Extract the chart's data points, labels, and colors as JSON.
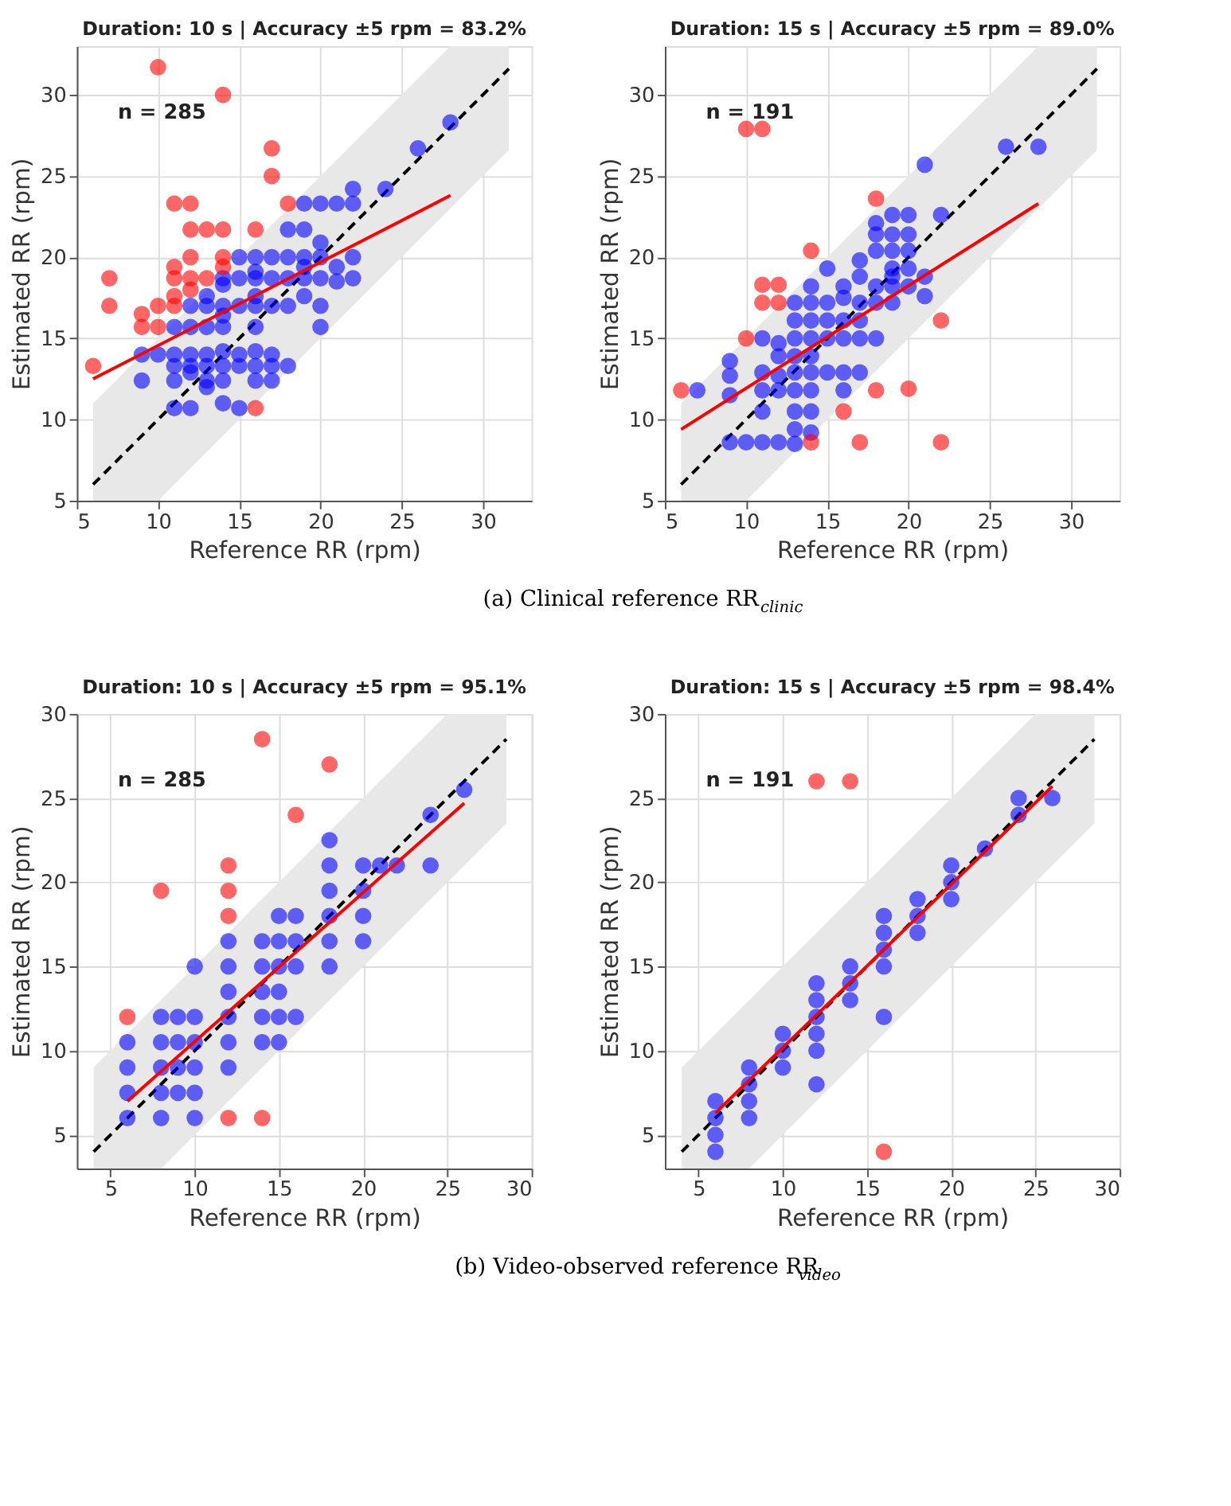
{
  "chart_data": [
    {
      "type": "scatter",
      "title": "Duration: 10 s | Accuracy ±5 rpm = 83.2%",
      "xlabel": "Reference RR (rpm)",
      "ylabel": "Estimated RR (rpm)",
      "xlim": [
        5,
        33
      ],
      "ylim": [
        5,
        33
      ],
      "xticks": [
        5,
        10,
        15,
        20,
        25,
        30
      ],
      "yticks": [
        5,
        10,
        15,
        20,
        25,
        30
      ],
      "grid": true,
      "annotations": [
        "n = 285",
        "(a) Clinical reference RR$_{clinic}$"
      ],
      "series": [
        {
          "type": "line",
          "color": "#000000",
          "line_style": "dashed",
          "x": [
            6,
            10,
            28,
            31.6
          ],
          "values": [
            6,
            10,
            28,
            31.6
          ],
          "lower": [
            5,
            5,
            23,
            26.6
          ],
          "upper": [
            11,
            15,
            33,
            33
          ]
        },
        {
          "type": "scatter",
          "color": "#0000ff",
          "x": [
            9,
            9,
            10,
            11,
            11,
            11,
            11,
            11,
            12,
            12,
            12,
            12,
            12,
            12,
            13,
            13,
            13,
            13,
            13,
            13,
            13,
            14,
            14,
            14,
            14,
            14,
            14,
            14,
            14,
            14,
            15,
            15,
            15,
            15,
            15,
            15,
            16,
            16,
            16,
            16,
            16,
            16,
            16,
            16,
            16,
            17,
            17,
            17,
            17,
            17,
            17,
            18,
            18,
            18,
            18,
            18,
            19,
            19,
            19,
            19,
            19,
            19,
            20,
            20,
            20,
            20,
            20,
            20,
            21,
            21,
            21,
            22,
            22,
            22,
            22,
            24,
            26,
            28
          ],
          "values": [
            14.0,
            12.4,
            14.0,
            15.7,
            14.0,
            13.3,
            12.4,
            10.7,
            17.0,
            15.7,
            14.0,
            13.3,
            12.9,
            10.7,
            17.6,
            17.0,
            15.7,
            14.0,
            13.3,
            12.4,
            12.0,
            18.7,
            18.3,
            17.0,
            16.4,
            15.7,
            14.2,
            13.3,
            12.4,
            11.0,
            20.0,
            18.7,
            17.0,
            14.0,
            13.3,
            10.7,
            20.0,
            19.1,
            18.7,
            17.6,
            17.0,
            15.7,
            14.2,
            13.3,
            12.4,
            20.0,
            18.7,
            17.0,
            14.0,
            13.3,
            12.4,
            21.7,
            20.0,
            18.7,
            17.0,
            13.3,
            23.3,
            21.7,
            20.0,
            19.4,
            18.7,
            17.6,
            23.3,
            20.9,
            20.0,
            18.7,
            17.0,
            15.7,
            23.3,
            19.4,
            18.5,
            24.2,
            23.3,
            20.0,
            18.7,
            24.2,
            26.7,
            28.3
          ]
        },
        {
          "type": "scatter",
          "color": "#ff0000",
          "x": [
            6,
            7,
            7,
            9,
            9,
            10,
            10,
            10,
            11,
            11,
            11,
            11,
            11,
            12,
            12,
            12,
            12,
            12,
            13,
            13,
            14,
            14,
            14,
            14,
            16,
            16,
            17,
            17,
            18
          ],
          "values": [
            13.3,
            18.7,
            17.0,
            16.5,
            15.7,
            31.7,
            17.0,
            15.7,
            23.3,
            19.4,
            18.7,
            17.6,
            17.0,
            23.3,
            21.7,
            20.0,
            18.7,
            18.0,
            21.7,
            18.7,
            30.0,
            21.7,
            20.0,
            19.4,
            21.7,
            10.7,
            26.7,
            25.0,
            23.3
          ]
        },
        {
          "type": "line",
          "color": "#ff0000",
          "x": [
            6,
            28
          ],
          "values": [
            12.5,
            23.8
          ]
        }
      ]
    },
    {
      "type": "scatter",
      "title": "Duration: 15 s | Accuracy ±5 rpm = 89.0%",
      "xlabel": "Reference RR (rpm)",
      "ylabel": "Estimated RR (rpm)",
      "xlim": [
        5,
        33
      ],
      "ylim": [
        5,
        33
      ],
      "xticks": [
        5,
        10,
        15,
        20,
        25,
        30
      ],
      "yticks": [
        5,
        10,
        15,
        20,
        25,
        30
      ],
      "grid": true,
      "annotations": [
        "n = 191"
      ],
      "series": [
        {
          "type": "line",
          "color": "#000000",
          "line_style": "dashed",
          "x": [
            6,
            10,
            28,
            31.6
          ],
          "values": [
            6,
            10,
            28,
            31.6
          ],
          "lower": [
            5,
            5,
            23,
            26.6
          ],
          "upper": [
            11,
            15,
            33,
            33
          ]
        },
        {
          "type": "scatter",
          "color": "#0000ff",
          "x": [
            7,
            9,
            9,
            9,
            9,
            10,
            11,
            11,
            11,
            11,
            11,
            12,
            12,
            12,
            12,
            12,
            13,
            13,
            13,
            13,
            13,
            13,
            13,
            13,
            13,
            14,
            14,
            14,
            14,
            14,
            14,
            14,
            14,
            14,
            15,
            15,
            15,
            15,
            15,
            16,
            16,
            16,
            16,
            16,
            16,
            17,
            17,
            17,
            17,
            17,
            17,
            18,
            18,
            18,
            18,
            18,
            18,
            19,
            19,
            19,
            19,
            19,
            19,
            19,
            20,
            20,
            20,
            20,
            20,
            21,
            21,
            21,
            22,
            26,
            28
          ],
          "values": [
            11.8,
            13.6,
            12.7,
            11.5,
            8.6,
            8.6,
            15.0,
            12.9,
            11.8,
            10.5,
            8.6,
            14.7,
            13.9,
            12.7,
            11.8,
            8.6,
            17.2,
            16.1,
            15.0,
            13.9,
            12.9,
            11.8,
            10.5,
            9.4,
            8.5,
            18.2,
            17.2,
            16.1,
            15.0,
            13.9,
            12.9,
            11.8,
            10.5,
            9.2,
            19.3,
            17.2,
            16.1,
            15.0,
            12.9,
            18.2,
            17.5,
            16.1,
            15.0,
            12.9,
            11.8,
            19.8,
            18.8,
            17.2,
            16.1,
            15.0,
            12.9,
            22.1,
            21.4,
            20.4,
            18.2,
            17.2,
            15.0,
            22.6,
            21.4,
            20.4,
            19.3,
            18.8,
            18.2,
            17.2,
            22.6,
            21.4,
            20.4,
            19.3,
            18.2,
            25.7,
            18.8,
            17.6,
            22.6,
            26.8,
            26.8
          ]
        },
        {
          "type": "scatter",
          "color": "#ff0000",
          "x": [
            6,
            10,
            10,
            11,
            11,
            11,
            12,
            12,
            14,
            14,
            16,
            17,
            18,
            18,
            20,
            22,
            22
          ],
          "values": [
            11.8,
            27.9,
            15.0,
            27.9,
            18.3,
            17.2,
            18.3,
            17.2,
            20.4,
            8.6,
            10.5,
            8.6,
            23.6,
            11.8,
            11.9,
            16.1,
            8.6
          ]
        },
        {
          "type": "line",
          "color": "#ff0000",
          "x": [
            6,
            28
          ],
          "values": [
            9.4,
            23.3
          ]
        }
      ]
    },
    {
      "type": "scatter",
      "title": "Duration: 10 s | Accuracy ±5 rpm = 95.1%",
      "xlabel": "Reference RR (rpm)",
      "ylabel": "Estimated RR (rpm)",
      "xlim": [
        3,
        30
      ],
      "ylim": [
        3,
        30
      ],
      "xticks": [
        5,
        10,
        15,
        20,
        25,
        30
      ],
      "yticks": [
        5,
        10,
        15,
        20,
        25,
        30
      ],
      "grid": true,
      "annotations": [
        "n = 285",
        "(b) Video-observed reference RR$_{video}$"
      ],
      "series": [
        {
          "type": "line",
          "color": "#000000",
          "line_style": "dashed",
          "x": [
            4,
            8,
            25,
            28.5
          ],
          "values": [
            4,
            8,
            25,
            28.5
          ],
          "lower": [
            3,
            3,
            20,
            23.5
          ],
          "upper": [
            9,
            13,
            30,
            30
          ]
        },
        {
          "type": "scatter",
          "color": "#0000ff",
          "x": [
            6,
            6,
            6,
            6,
            8,
            8,
            8,
            8,
            8,
            9,
            9,
            9,
            9,
            10,
            10,
            10,
            10,
            10,
            10,
            12,
            12,
            12,
            12,
            12,
            12,
            14,
            14,
            14,
            14,
            14,
            15,
            15,
            15,
            15,
            15,
            15,
            16,
            16,
            16,
            16,
            18,
            18,
            18,
            18,
            18,
            18,
            20,
            20,
            20,
            20,
            21,
            22,
            24,
            24,
            26
          ],
          "values": [
            10.5,
            9,
            7.5,
            6,
            12,
            10.5,
            9,
            7.5,
            6,
            12,
            10.5,
            9,
            7.5,
            15,
            12,
            10.5,
            9,
            7.5,
            6,
            16.5,
            15,
            13.5,
            12,
            10.5,
            9,
            16.5,
            15,
            13.5,
            12,
            10.5,
            18,
            16.5,
            15,
            13.5,
            12,
            10.5,
            18,
            16.5,
            15,
            12,
            22.5,
            21,
            19.5,
            18,
            16.5,
            15,
            21,
            19.5,
            18,
            16.5,
            21,
            21,
            24,
            21,
            25.5
          ]
        },
        {
          "type": "scatter",
          "color": "#ff0000",
          "x": [
            6,
            8,
            12,
            12,
            12,
            12,
            14,
            14,
            16,
            18
          ],
          "values": [
            12,
            19.5,
            21,
            19.5,
            18,
            6,
            28.5,
            6,
            24,
            27
          ]
        },
        {
          "type": "line",
          "color": "#ff0000",
          "x": [
            6,
            26
          ],
          "values": [
            7.0,
            24.7
          ]
        }
      ]
    },
    {
      "type": "scatter",
      "title": "Duration: 15 s | Accuracy ±5 rpm = 98.4%",
      "xlabel": "Reference RR (rpm)",
      "ylabel": "Estimated RR (rpm)",
      "xlim": [
        3,
        30
      ],
      "ylim": [
        3,
        30
      ],
      "xticks": [
        5,
        10,
        15,
        20,
        25,
        30
      ],
      "yticks": [
        5,
        10,
        15,
        20,
        25,
        30
      ],
      "grid": true,
      "annotations": [
        "n = 191"
      ],
      "series": [
        {
          "type": "line",
          "color": "#000000",
          "line_style": "dashed",
          "x": [
            4,
            8,
            25,
            28.5
          ],
          "values": [
            4,
            8,
            25,
            28.5
          ],
          "lower": [
            3,
            3,
            20,
            23.5
          ],
          "upper": [
            9,
            13,
            30,
            30
          ]
        },
        {
          "type": "scatter",
          "color": "#0000ff",
          "x": [
            6,
            6,
            6,
            6,
            8,
            8,
            8,
            8,
            10,
            10,
            10,
            12,
            12,
            12,
            12,
            12,
            12,
            14,
            14,
            14,
            16,
            16,
            16,
            16,
            16,
            18,
            18,
            18,
            20,
            20,
            20,
            22,
            24,
            24,
            26
          ],
          "values": [
            7,
            6,
            5,
            4,
            9,
            8,
            7,
            6,
            11,
            10,
            9,
            14,
            13,
            12,
            11,
            10,
            8,
            15,
            14,
            13,
            18,
            17,
            16,
            15,
            12,
            19,
            18,
            17,
            21,
            20,
            19,
            22,
            25,
            24,
            25
          ]
        },
        {
          "type": "scatter",
          "color": "#ff0000",
          "x": [
            12,
            14,
            16
          ],
          "values": [
            26,
            26,
            4
          ]
        },
        {
          "type": "line",
          "color": "#ff0000",
          "x": [
            6,
            26
          ],
          "values": [
            6.3,
            25.7
          ]
        }
      ]
    }
  ]
}
